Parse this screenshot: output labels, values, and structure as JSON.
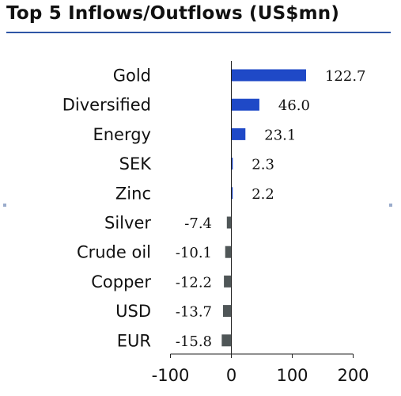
{
  "title": "Top 5 Inflows/Outflows (US$mn)",
  "colors": {
    "positive": "#1f49c7",
    "negative": "#4f5657",
    "title_rule": "#2f56a6"
  },
  "chart_data": {
    "type": "bar",
    "orientation": "horizontal",
    "title": "Top 5 Inflows/Outflows (US$mn)",
    "categories": [
      "Gold",
      "Diversified",
      "Energy",
      "SEK",
      "Zinc",
      "Silver",
      "Crude oil",
      "Copper",
      "USD",
      "EUR"
    ],
    "values": [
      122.7,
      46.0,
      23.1,
      2.3,
      2.2,
      -7.4,
      -10.1,
      -12.2,
      -13.7,
      -15.8
    ],
    "value_labels": [
      "122.7",
      "46.0",
      "23.1",
      "2.3",
      "2.2",
      "-7.4",
      "-10.1",
      "-12.2",
      "-13.7",
      "-15.8"
    ],
    "xlim": [
      -100,
      200
    ],
    "xticks": [
      -100,
      0,
      100,
      200
    ],
    "xtick_labels": [
      "-100",
      "0",
      "100",
      "200"
    ],
    "grid": false,
    "legend": "none"
  }
}
